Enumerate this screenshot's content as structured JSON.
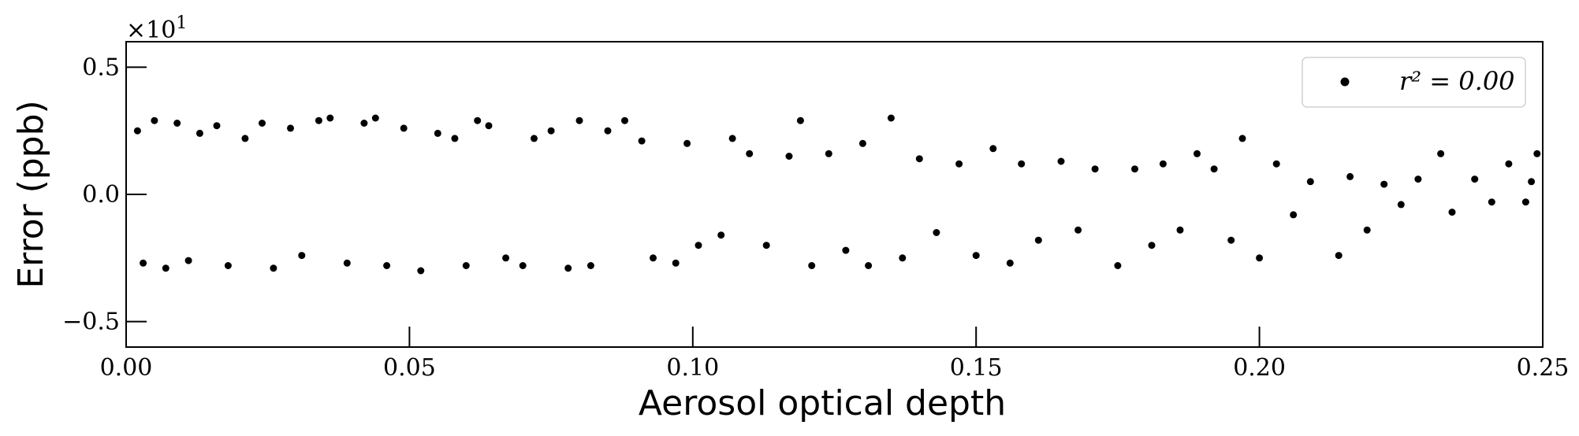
{
  "chart_data": {
    "type": "scatter",
    "xlabel": "Aerosol optical depth",
    "ylabel": "Error (ppb)",
    "xlim": [
      0.0,
      0.25
    ],
    "ylim": [
      -0.6,
      0.6
    ],
    "x_ticks": [
      0.0,
      0.05,
      0.1,
      0.15,
      0.2,
      0.25
    ],
    "x_tick_labels": [
      "0.00",
      "0.05",
      "0.10",
      "0.15",
      "0.20",
      "0.25"
    ],
    "y_ticks": [
      -0.5,
      0.0,
      0.5
    ],
    "y_tick_labels": [
      "−0.5",
      "0.0",
      "0.5"
    ],
    "y_offset_label": {
      "base": "×10",
      "exponent": "1"
    },
    "legend": {
      "placement": "top-right",
      "entries": [
        {
          "label": "r² = 0.00",
          "marker": "circle",
          "color": "#000000"
        }
      ]
    },
    "marker_color": "#000000",
    "grid": false,
    "series": [
      {
        "name": "r² = 0.00",
        "points": [
          [
            0.002,
            0.25
          ],
          [
            0.003,
            -0.27
          ],
          [
            0.005,
            0.29
          ],
          [
            0.007,
            -0.29
          ],
          [
            0.009,
            0.28
          ],
          [
            0.011,
            -0.26
          ],
          [
            0.013,
            0.24
          ],
          [
            0.016,
            0.27
          ],
          [
            0.018,
            -0.28
          ],
          [
            0.021,
            0.22
          ],
          [
            0.024,
            0.28
          ],
          [
            0.026,
            -0.29
          ],
          [
            0.029,
            0.26
          ],
          [
            0.031,
            -0.24
          ],
          [
            0.034,
            0.29
          ],
          [
            0.036,
            0.3
          ],
          [
            0.039,
            -0.27
          ],
          [
            0.042,
            0.28
          ],
          [
            0.044,
            0.3
          ],
          [
            0.046,
            -0.28
          ],
          [
            0.049,
            0.26
          ],
          [
            0.052,
            -0.3
          ],
          [
            0.055,
            0.24
          ],
          [
            0.058,
            0.22
          ],
          [
            0.06,
            -0.28
          ],
          [
            0.062,
            0.29
          ],
          [
            0.064,
            0.27
          ],
          [
            0.067,
            -0.25
          ],
          [
            0.07,
            -0.28
          ],
          [
            0.072,
            0.22
          ],
          [
            0.075,
            0.25
          ],
          [
            0.078,
            -0.29
          ],
          [
            0.08,
            0.29
          ],
          [
            0.082,
            -0.28
          ],
          [
            0.085,
            0.25
          ],
          [
            0.088,
            0.29
          ],
          [
            0.091,
            0.21
          ],
          [
            0.093,
            -0.25
          ],
          [
            0.097,
            -0.27
          ],
          [
            0.099,
            0.2
          ],
          [
            0.101,
            -0.2
          ],
          [
            0.105,
            -0.16
          ],
          [
            0.107,
            0.22
          ],
          [
            0.11,
            0.16
          ],
          [
            0.113,
            -0.2
          ],
          [
            0.117,
            0.15
          ],
          [
            0.119,
            0.29
          ],
          [
            0.121,
            -0.28
          ],
          [
            0.124,
            0.16
          ],
          [
            0.127,
            -0.22
          ],
          [
            0.13,
            0.2
          ],
          [
            0.131,
            -0.28
          ],
          [
            0.135,
            0.3
          ],
          [
            0.137,
            -0.25
          ],
          [
            0.14,
            0.14
          ],
          [
            0.143,
            -0.15
          ],
          [
            0.147,
            0.12
          ],
          [
            0.15,
            -0.24
          ],
          [
            0.153,
            0.18
          ],
          [
            0.156,
            -0.27
          ],
          [
            0.158,
            0.12
          ],
          [
            0.161,
            -0.18
          ],
          [
            0.165,
            0.13
          ],
          [
            0.168,
            -0.14
          ],
          [
            0.171,
            0.1
          ],
          [
            0.175,
            -0.28
          ],
          [
            0.178,
            0.1
          ],
          [
            0.181,
            -0.2
          ],
          [
            0.183,
            0.12
          ],
          [
            0.186,
            -0.14
          ],
          [
            0.189,
            0.16
          ],
          [
            0.192,
            0.1
          ],
          [
            0.195,
            -0.18
          ],
          [
            0.197,
            0.22
          ],
          [
            0.2,
            -0.25
          ],
          [
            0.203,
            0.12
          ],
          [
            0.206,
            -0.08
          ],
          [
            0.209,
            0.05
          ],
          [
            0.214,
            -0.24
          ],
          [
            0.216,
            0.07
          ],
          [
            0.219,
            -0.14
          ],
          [
            0.222,
            0.04
          ],
          [
            0.225,
            -0.04
          ],
          [
            0.228,
            0.06
          ],
          [
            0.232,
            0.16
          ],
          [
            0.234,
            -0.07
          ],
          [
            0.238,
            0.06
          ],
          [
            0.241,
            -0.03
          ],
          [
            0.244,
            0.12
          ],
          [
            0.247,
            -0.03
          ],
          [
            0.249,
            0.16
          ],
          [
            0.248,
            0.05
          ]
        ]
      }
    ]
  }
}
